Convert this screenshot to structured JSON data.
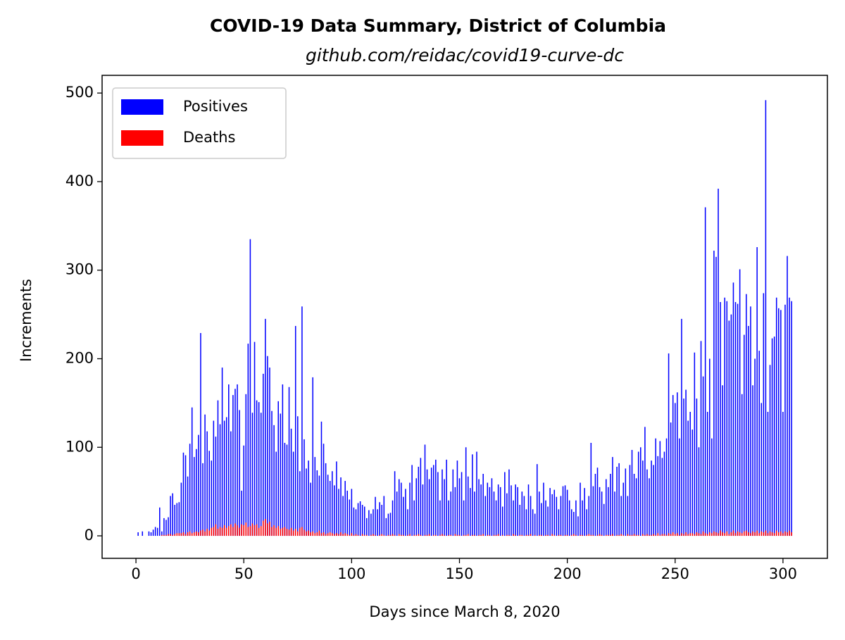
{
  "chart_data": {
    "type": "bar",
    "title": "COVID-19 Data Summary, District of Columbia",
    "subtitle": "github.com/reidac/covid19-curve-dc",
    "x_label": "Days since March 8, 2020",
    "y_label": "Increments",
    "legend": "upper left",
    "xlim": [
      -15.7,
      320.6
    ],
    "ylim": [
      -25.4,
      520
    ],
    "xticks": [
      0,
      50,
      100,
      150,
      200,
      250,
      300
    ],
    "yticks": [
      0,
      100,
      200,
      300,
      400,
      500
    ],
    "x": [
      0,
      1,
      2,
      3,
      4,
      5,
      6,
      7,
      8,
      9,
      10,
      11,
      12,
      13,
      14,
      15,
      16,
      17,
      18,
      19,
      20,
      21,
      22,
      23,
      24,
      25,
      26,
      27,
      28,
      29,
      30,
      31,
      32,
      33,
      34,
      35,
      36,
      37,
      38,
      39,
      40,
      41,
      42,
      43,
      44,
      45,
      46,
      47,
      48,
      49,
      50,
      51,
      52,
      53,
      54,
      55,
      56,
      57,
      58,
      59,
      60,
      61,
      62,
      63,
      64,
      65,
      66,
      67,
      68,
      69,
      70,
      71,
      72,
      73,
      74,
      75,
      76,
      77,
      78,
      79,
      80,
      81,
      82,
      83,
      84,
      85,
      86,
      87,
      88,
      89,
      90,
      91,
      92,
      93,
      94,
      95,
      96,
      97,
      98,
      99,
      100,
      101,
      102,
      103,
      104,
      105,
      106,
      107,
      108,
      109,
      110,
      111,
      112,
      113,
      114,
      115,
      116,
      117,
      118,
      119,
      120,
      121,
      122,
      123,
      124,
      125,
      126,
      127,
      128,
      129,
      130,
      131,
      132,
      133,
      134,
      135,
      136,
      137,
      138,
      139,
      140,
      141,
      142,
      143,
      144,
      145,
      146,
      147,
      148,
      149,
      150,
      151,
      152,
      153,
      154,
      155,
      156,
      157,
      158,
      159,
      160,
      161,
      162,
      163,
      164,
      165,
      166,
      167,
      168,
      169,
      170,
      171,
      172,
      173,
      174,
      175,
      176,
      177,
      178,
      179,
      180,
      181,
      182,
      183,
      184,
      185,
      186,
      187,
      188,
      189,
      190,
      191,
      192,
      193,
      194,
      195,
      196,
      197,
      198,
      199,
      200,
      201,
      202,
      203,
      204,
      205,
      206,
      207,
      208,
      209,
      210,
      211,
      212,
      213,
      214,
      215,
      216,
      217,
      218,
      219,
      220,
      221,
      222,
      223,
      224,
      225,
      226,
      227,
      228,
      229,
      230,
      231,
      232,
      233,
      234,
      235,
      236,
      237,
      238,
      239,
      240,
      241,
      242,
      243,
      244,
      245,
      246,
      247,
      248,
      249,
      250,
      251,
      252,
      253,
      254,
      255,
      256,
      257,
      258,
      259,
      260,
      261,
      262,
      263,
      264,
      265,
      266,
      267,
      268,
      269,
      270,
      271,
      272,
      273,
      274,
      275,
      276,
      277,
      278,
      279,
      280,
      281,
      282,
      283,
      284,
      285,
      286,
      287,
      288,
      289,
      290,
      291,
      292,
      293,
      294,
      295,
      296,
      297,
      298,
      299,
      300,
      301,
      302,
      303,
      304
    ],
    "series": [
      {
        "name": "Positives",
        "color": "#0000ff",
        "values": [
          0,
          4,
          0,
          5,
          0,
          0,
          5,
          4,
          7,
          10,
          9,
          32,
          5,
          20,
          18,
          21,
          45,
          48,
          35,
          37,
          38,
          60,
          94,
          91,
          67,
          104,
          145,
          89,
          98,
          114,
          229,
          82,
          137,
          118,
          96,
          85,
          130,
          112,
          153,
          126,
          190,
          130,
          134,
          171,
          118,
          159,
          166,
          171,
          142,
          51,
          102,
          160,
          217,
          335,
          139,
          219,
          153,
          151,
          139,
          183,
          245,
          203,
          190,
          141,
          125,
          95,
          152,
          138,
          171,
          105,
          103,
          168,
          121,
          95,
          237,
          135,
          73,
          259,
          109,
          76,
          85,
          60,
          179,
          89,
          74,
          68,
          129,
          104,
          82,
          69,
          62,
          73,
          57,
          84,
          53,
          66,
          45,
          62,
          51,
          41,
          53,
          32,
          30,
          37,
          39,
          35,
          33,
          20,
          29,
          25,
          30,
          44,
          30,
          38,
          35,
          45,
          20,
          25,
          26,
          40,
          73,
          50,
          64,
          60,
          44,
          53,
          30,
          60,
          80,
          40,
          65,
          78,
          88,
          58,
          103,
          75,
          64,
          77,
          80,
          86,
          72,
          40,
          75,
          64,
          86,
          40,
          50,
          75,
          55,
          85,
          65,
          72,
          40,
          100,
          67,
          54,
          92,
          50,
          95,
          64,
          58,
          70,
          45,
          60,
          55,
          65,
          50,
          40,
          58,
          55,
          33,
          72,
          48,
          75,
          57,
          40,
          58,
          55,
          35,
          50,
          45,
          30,
          58,
          45,
          30,
          25,
          81,
          50,
          37,
          60,
          40,
          33,
          54,
          47,
          52,
          44,
          30,
          45,
          56,
          57,
          52,
          40,
          30,
          27,
          40,
          22,
          60,
          40,
          54,
          30,
          45,
          105,
          56,
          70,
          77,
          55,
          50,
          36,
          64,
          55,
          70,
          89,
          50,
          78,
          82,
          45,
          60,
          76,
          45,
          80,
          97,
          70,
          65,
          95,
          100,
          85,
          123,
          75,
          65,
          85,
          80,
          110,
          90,
          107,
          88,
          95,
          110,
          206,
          128,
          159,
          150,
          162,
          110,
          245,
          155,
          165,
          130,
          140,
          120,
          207,
          155,
          100,
          220,
          180,
          371,
          140,
          200,
          110,
          322,
          315,
          392,
          264,
          170,
          269,
          265,
          243,
          250,
          286,
          264,
          262,
          301,
          160,
          227,
          273,
          237,
          259,
          170,
          200,
          326,
          209,
          150,
          274,
          492,
          140,
          193,
          223,
          225,
          269,
          257,
          255,
          140,
          261,
          316,
          269,
          265
        ]
      },
      {
        "name": "Deaths",
        "color": "#ff0000",
        "values": [
          0,
          0,
          0,
          0,
          0,
          0,
          0,
          0,
          0,
          0,
          0,
          0,
          1,
          1,
          1,
          2,
          2,
          1,
          2,
          3,
          3,
          3,
          4,
          2,
          4,
          5,
          3,
          4,
          5,
          4,
          6,
          7,
          5,
          8,
          6,
          9,
          10,
          13,
          8,
          10,
          9,
          12,
          9,
          11,
          13,
          10,
          14,
          12,
          9,
          13,
          12,
          15,
          10,
          11,
          14,
          12,
          13,
          9,
          11,
          17,
          19,
          14,
          16,
          10,
          12,
          9,
          11,
          8,
          9,
          10,
          8,
          7,
          9,
          6,
          8,
          5,
          9,
          10,
          7,
          5,
          6,
          4,
          5,
          3,
          4,
          6,
          3,
          4,
          2,
          3,
          4,
          3,
          2,
          3,
          2,
          4,
          2,
          3,
          2,
          1,
          3,
          1,
          2,
          1,
          0,
          2,
          1,
          1,
          0,
          1,
          2,
          1,
          0,
          1,
          2,
          1,
          0,
          1,
          1,
          2,
          1,
          0,
          2,
          1,
          1,
          0,
          1,
          2,
          0,
          1,
          1,
          2,
          1,
          0,
          1,
          1,
          2,
          0,
          1,
          1,
          0,
          1,
          2,
          1,
          0,
          1,
          1,
          0,
          2,
          1,
          1,
          0,
          1,
          1,
          2,
          0,
          1,
          1,
          0,
          1,
          1,
          2,
          0,
          1,
          1,
          0,
          1,
          1,
          2,
          0,
          1,
          0,
          1,
          1,
          0,
          2,
          1,
          0,
          1,
          1,
          0,
          1,
          1,
          2,
          0,
          1,
          0,
          1,
          1,
          0,
          1,
          1,
          0,
          2,
          1,
          0,
          1,
          1,
          0,
          1,
          1,
          0,
          1,
          2,
          1,
          0,
          1,
          1,
          0,
          1,
          2,
          1,
          1,
          0,
          1,
          2,
          1,
          0,
          1,
          1,
          1,
          2,
          0,
          1,
          1,
          2,
          1,
          0,
          2,
          1,
          1,
          2,
          1,
          1,
          0,
          2,
          1,
          2,
          1,
          1,
          2,
          1,
          3,
          1,
          2,
          2,
          1,
          3,
          2,
          4,
          2,
          3,
          1,
          3,
          2,
          4,
          2,
          3,
          3,
          2,
          4,
          3,
          2,
          5,
          3,
          2,
          4,
          3,
          5,
          4,
          3,
          6,
          4,
          3,
          5,
          2,
          4,
          6,
          3,
          5,
          4,
          3,
          5,
          6,
          4,
          3,
          5,
          4,
          6,
          3,
          5,
          4,
          6,
          3,
          5,
          4,
          3,
          6,
          4,
          5,
          3,
          5,
          4,
          6,
          4
        ]
      }
    ]
  }
}
